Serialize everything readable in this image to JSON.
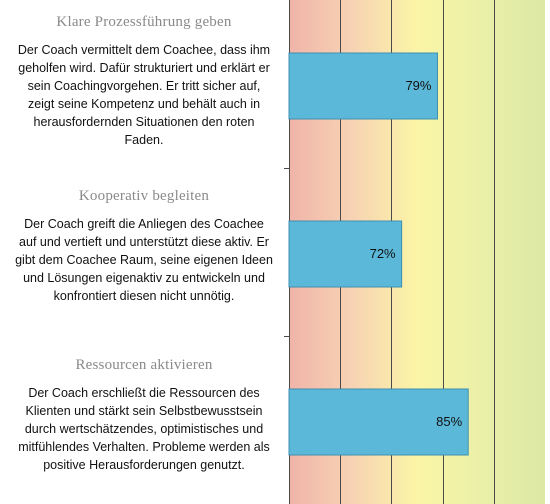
{
  "chart_data": {
    "type": "bar",
    "orientation": "horizontal",
    "categories": [
      {
        "title": "Klare Prozessführung  geben",
        "description": "Der Coach vermittelt dem Coachee, dass ihm geholfen wird. Dafür strukturiert und erklärt er sein Coachingvorgehen. Er tritt sicher auf, zeigt seine Kompetenz und behält auch in herausfordernden Situationen den roten Faden.",
        "value": 79,
        "label": "79%"
      },
      {
        "title": "Kooperativ  begleiten",
        "description": "Der Coach greift die Anliegen des Coachee auf und vertieft und unterstützt diese aktiv. Er gibt dem Coachee Raum, seine eigenen Ideen und Lösungen eigenaktiv zu entwickeln und konfrontiert diesen nicht unnötig.",
        "value": 72,
        "label": "72%"
      },
      {
        "title": "Ressourcen  aktivieren",
        "description": "Der Coach erschließt die Ressourcen des Klienten und stärkt sein Selbstbewusstsein durch wertschätzendes, optimistisches und mitfühlendes Verhalten. Probleme werden als positive Herausforderungen genutzt.",
        "value": 85,
        "label": "85%"
      }
    ],
    "xlim": [
      50,
      100
    ],
    "gridlines": [
      50,
      60,
      70,
      80,
      90
    ],
    "grid": true,
    "colors": {
      "bar": "#5bb8d8",
      "bar_border": "#3f8fb0",
      "gradient": [
        "#f0b4a8",
        "#f7d3b4",
        "#fbf5a6",
        "#eaf0a8",
        "#dce8a4"
      ],
      "gridline": "#4a4a4a",
      "text": "#111111",
      "title": "#8a8a8a"
    }
  }
}
